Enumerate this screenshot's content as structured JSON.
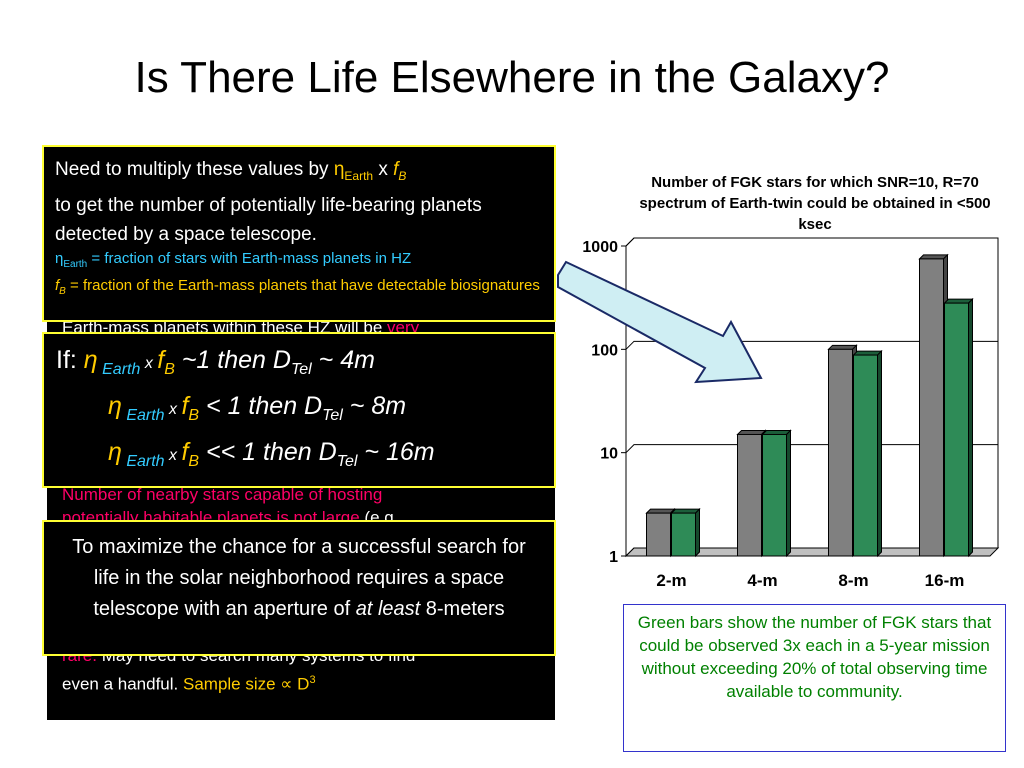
{
  "slide": {
    "title": "Is There Life Elsewhere in the Galaxy?"
  },
  "box1": {
    "line1_a": "Need to multiply these values by ",
    "eta": "η",
    "sub_earth": "Earth",
    "x": " x ",
    "f": "f",
    "sub_b": "B",
    "line1_b": "to get the number of potentially life-bearing planets detected by a space telescope.",
    "def1_rest": " = fraction of stars with Earth-mass planets in HZ",
    "def2_rest": " = fraction of the Earth-mass planets that have detectable biosignatures"
  },
  "hidden_back": {
    "partial_line": "Earth-mass planets within these HZ will be ",
    "partial_red": "very"
  },
  "box2": {
    "if_label": "If: ",
    "eta": "η",
    "sub_earth": " Earth",
    "x": " x ",
    "f": "f",
    "sub_b": "B",
    "row1_rest": " ~1     then D",
    "row1_end": "  ~  4m",
    "row2_rest": " < 1    then D",
    "row2_end": "  ~  8m",
    "row3_rest": " << 1  then D",
    "row3_end": " ~ 16m",
    "sub_tel": "Tel"
  },
  "hidden_mid": {
    "line1": "Number of nearby stars capable of hosting",
    "line2": "potentially habitable planets is not large",
    "line2_tail": " (e.g."
  },
  "box3": {
    "text_a": "To maximize the chance for a successful search for life in the solar neighborhood requires a space telescope with an aperture of ",
    "text_it": "at least",
    "text_b": " 8-meters"
  },
  "hidden_bottom": {
    "rare": "rare.",
    "line1": " May need to search many systems to find",
    "line2": "even a handful. ",
    "sample": "Sample size ∝ D",
    "sup": "3"
  },
  "chart_data": {
    "type": "bar",
    "title": "Number of FGK stars for which SNR=10, R=70 spectrum of Earth-twin could be obtained in <500 ksec",
    "categories": [
      "2-m",
      "4-m",
      "8-m",
      "16-m"
    ],
    "series": [
      {
        "values": [
          2.6,
          15,
          100,
          750
        ],
        "color": "#808080"
      },
      {
        "values": [
          2.6,
          15,
          88,
          280
        ],
        "color": "#2e8b57"
      }
    ],
    "y_scale": "log",
    "ylim": [
      1,
      1000
    ],
    "y_ticks": [
      "1",
      "10",
      "100",
      "1000"
    ],
    "grid": true
  },
  "caption": {
    "text": "Green bars show the number of FGK stars that could be observed 3x each in a 5-year mission without exceeding 20% of total observing time available to community."
  },
  "colors": {
    "box_border": "#ffff33",
    "cyan": "#33ccff",
    "yellow": "#ffcc00",
    "pink": "#ff0066",
    "arrow_fill": "#cfeef3",
    "caption_border": "#3333cc",
    "caption_text": "#008000"
  }
}
